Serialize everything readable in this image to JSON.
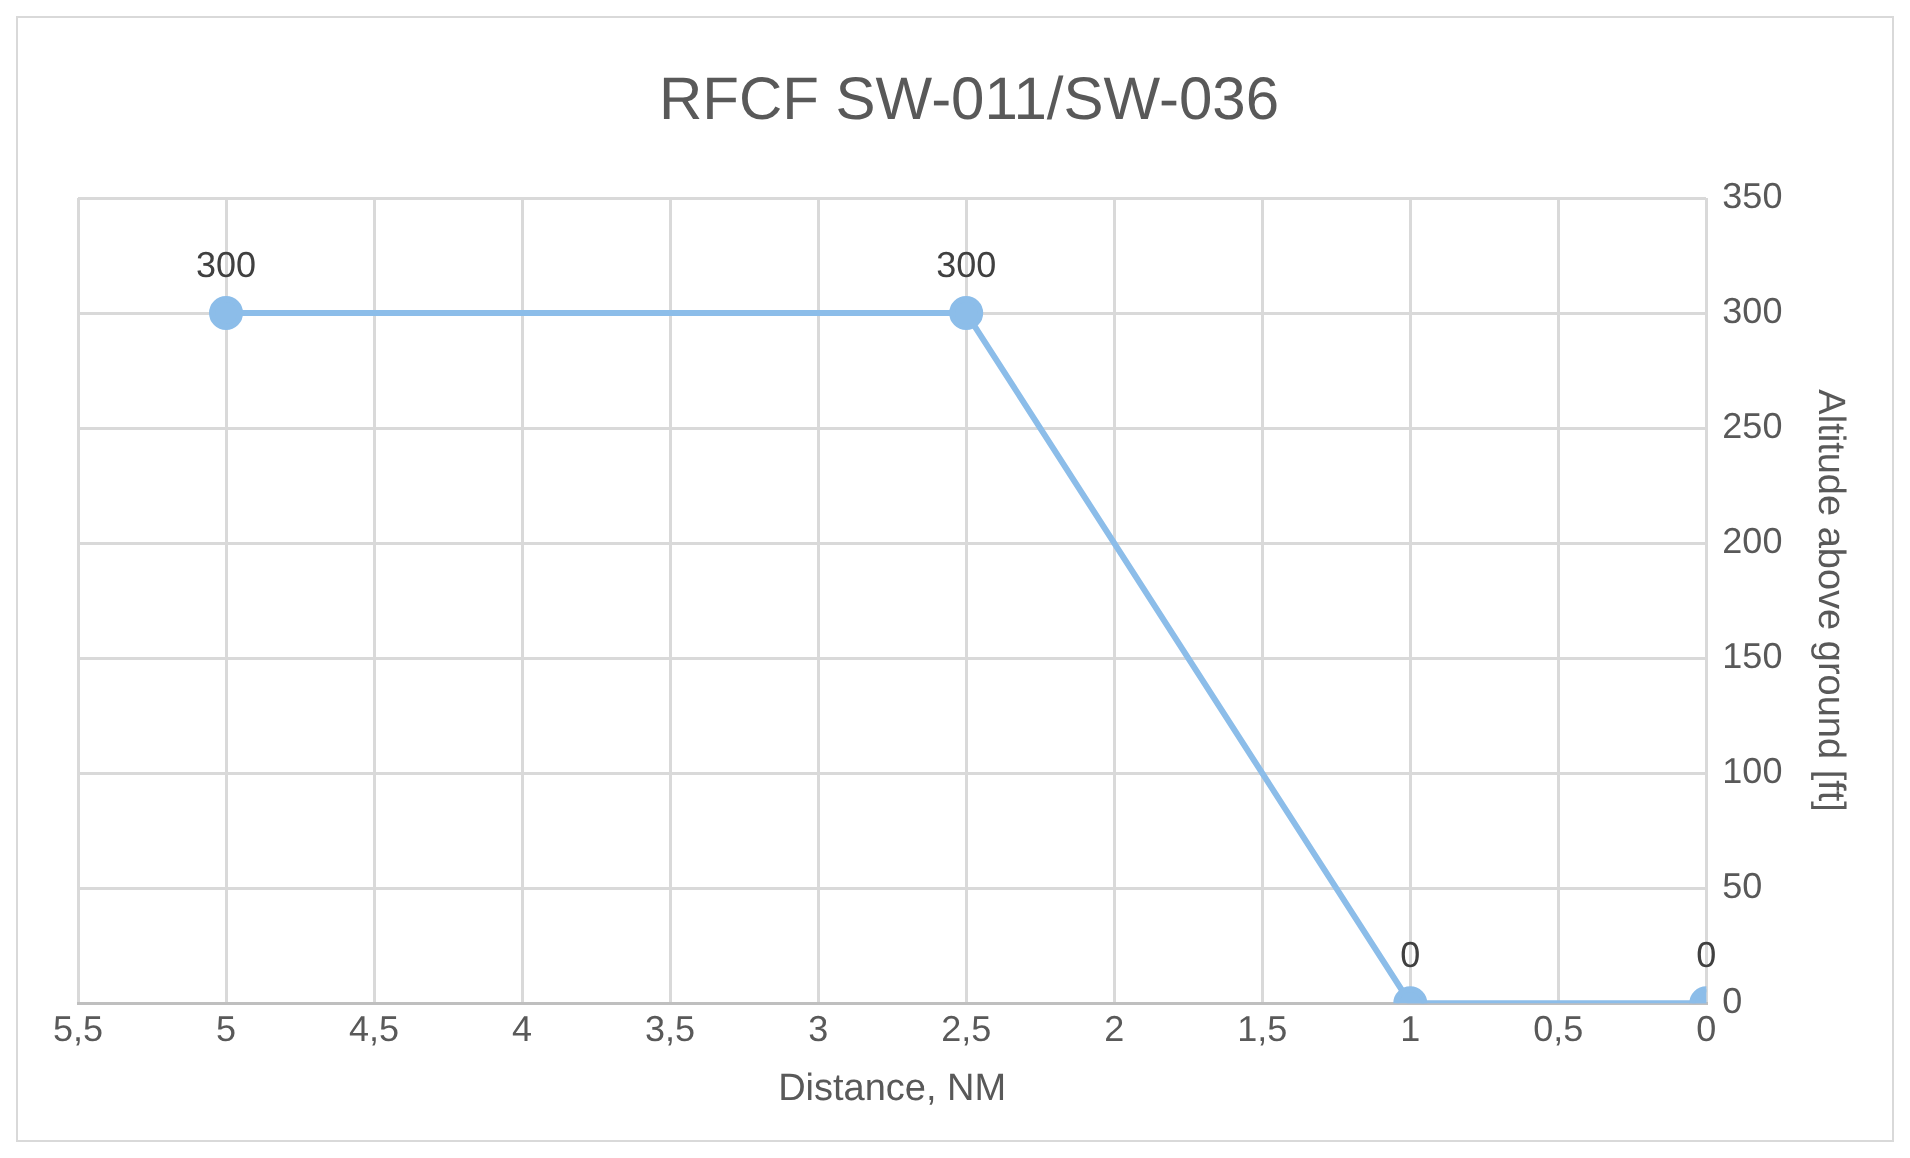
{
  "chart_data": {
    "type": "line",
    "title": "RFCF SW-011/SW-036",
    "xlabel": "Distance, NM",
    "y2label": "Altitude above ground [ft]",
    "x": [
      5,
      2.5,
      1,
      0
    ],
    "series": [
      {
        "color": "#8cbde9",
        "values": [
          300,
          300,
          0,
          0
        ],
        "axis": "y2"
      }
    ],
    "xlim": [
      5.5,
      0
    ],
    "xticks": [
      {
        "value": 5.5,
        "label": "5,5"
      },
      5,
      {
        "value": 4.5,
        "label": "4,5"
      },
      4,
      {
        "value": 3.5,
        "label": "3,5"
      },
      3,
      {
        "value": 2.5,
        "label": "2,5"
      },
      2,
      {
        "value": 1.5,
        "label": "1,5"
      },
      1,
      {
        "value": 0.5,
        "label": "0,5"
      },
      0
    ],
    "y2lim": [
      0,
      350
    ],
    "y2ticks": [
      0,
      50,
      100,
      150,
      200,
      250,
      300,
      350
    ],
    "grid": true,
    "legend": false,
    "marker": "circle",
    "line_style": "solid",
    "data_labels": true
  }
}
